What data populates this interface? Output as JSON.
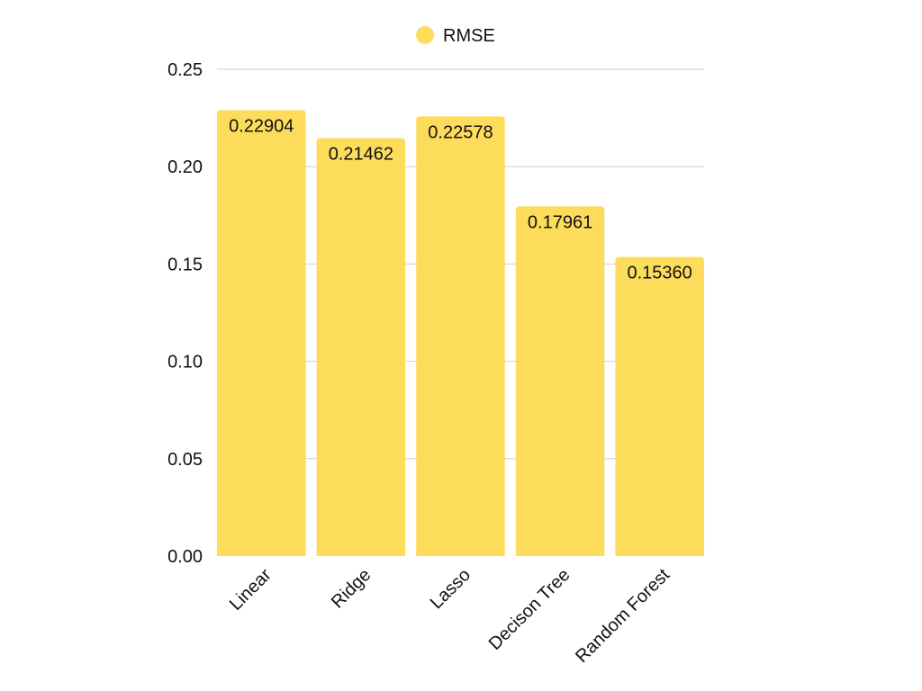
{
  "chart_data": {
    "type": "bar",
    "categories": [
      "Linear",
      "Ridge",
      "Lasso",
      "Decison Tree",
      "Random Forest"
    ],
    "series": [
      {
        "name": "RMSE",
        "values": [
          0.22904,
          0.21462,
          0.22578,
          0.17961,
          0.1536
        ],
        "labels": [
          "0.22904",
          "0.21462",
          "0.22578",
          "0.17961",
          "0.15360"
        ],
        "color": "#FDDC5C"
      }
    ],
    "ylim": [
      0,
      0.25
    ],
    "yticks": [
      0.0,
      0.05,
      0.1,
      0.15,
      0.2,
      0.25
    ],
    "ytick_labels": [
      "0.00",
      "0.05",
      "0.10",
      "0.15",
      "0.20",
      "0.25"
    ],
    "grid": true,
    "legend_position": "top-center",
    "title": "",
    "xlabel": "",
    "ylabel": ""
  }
}
